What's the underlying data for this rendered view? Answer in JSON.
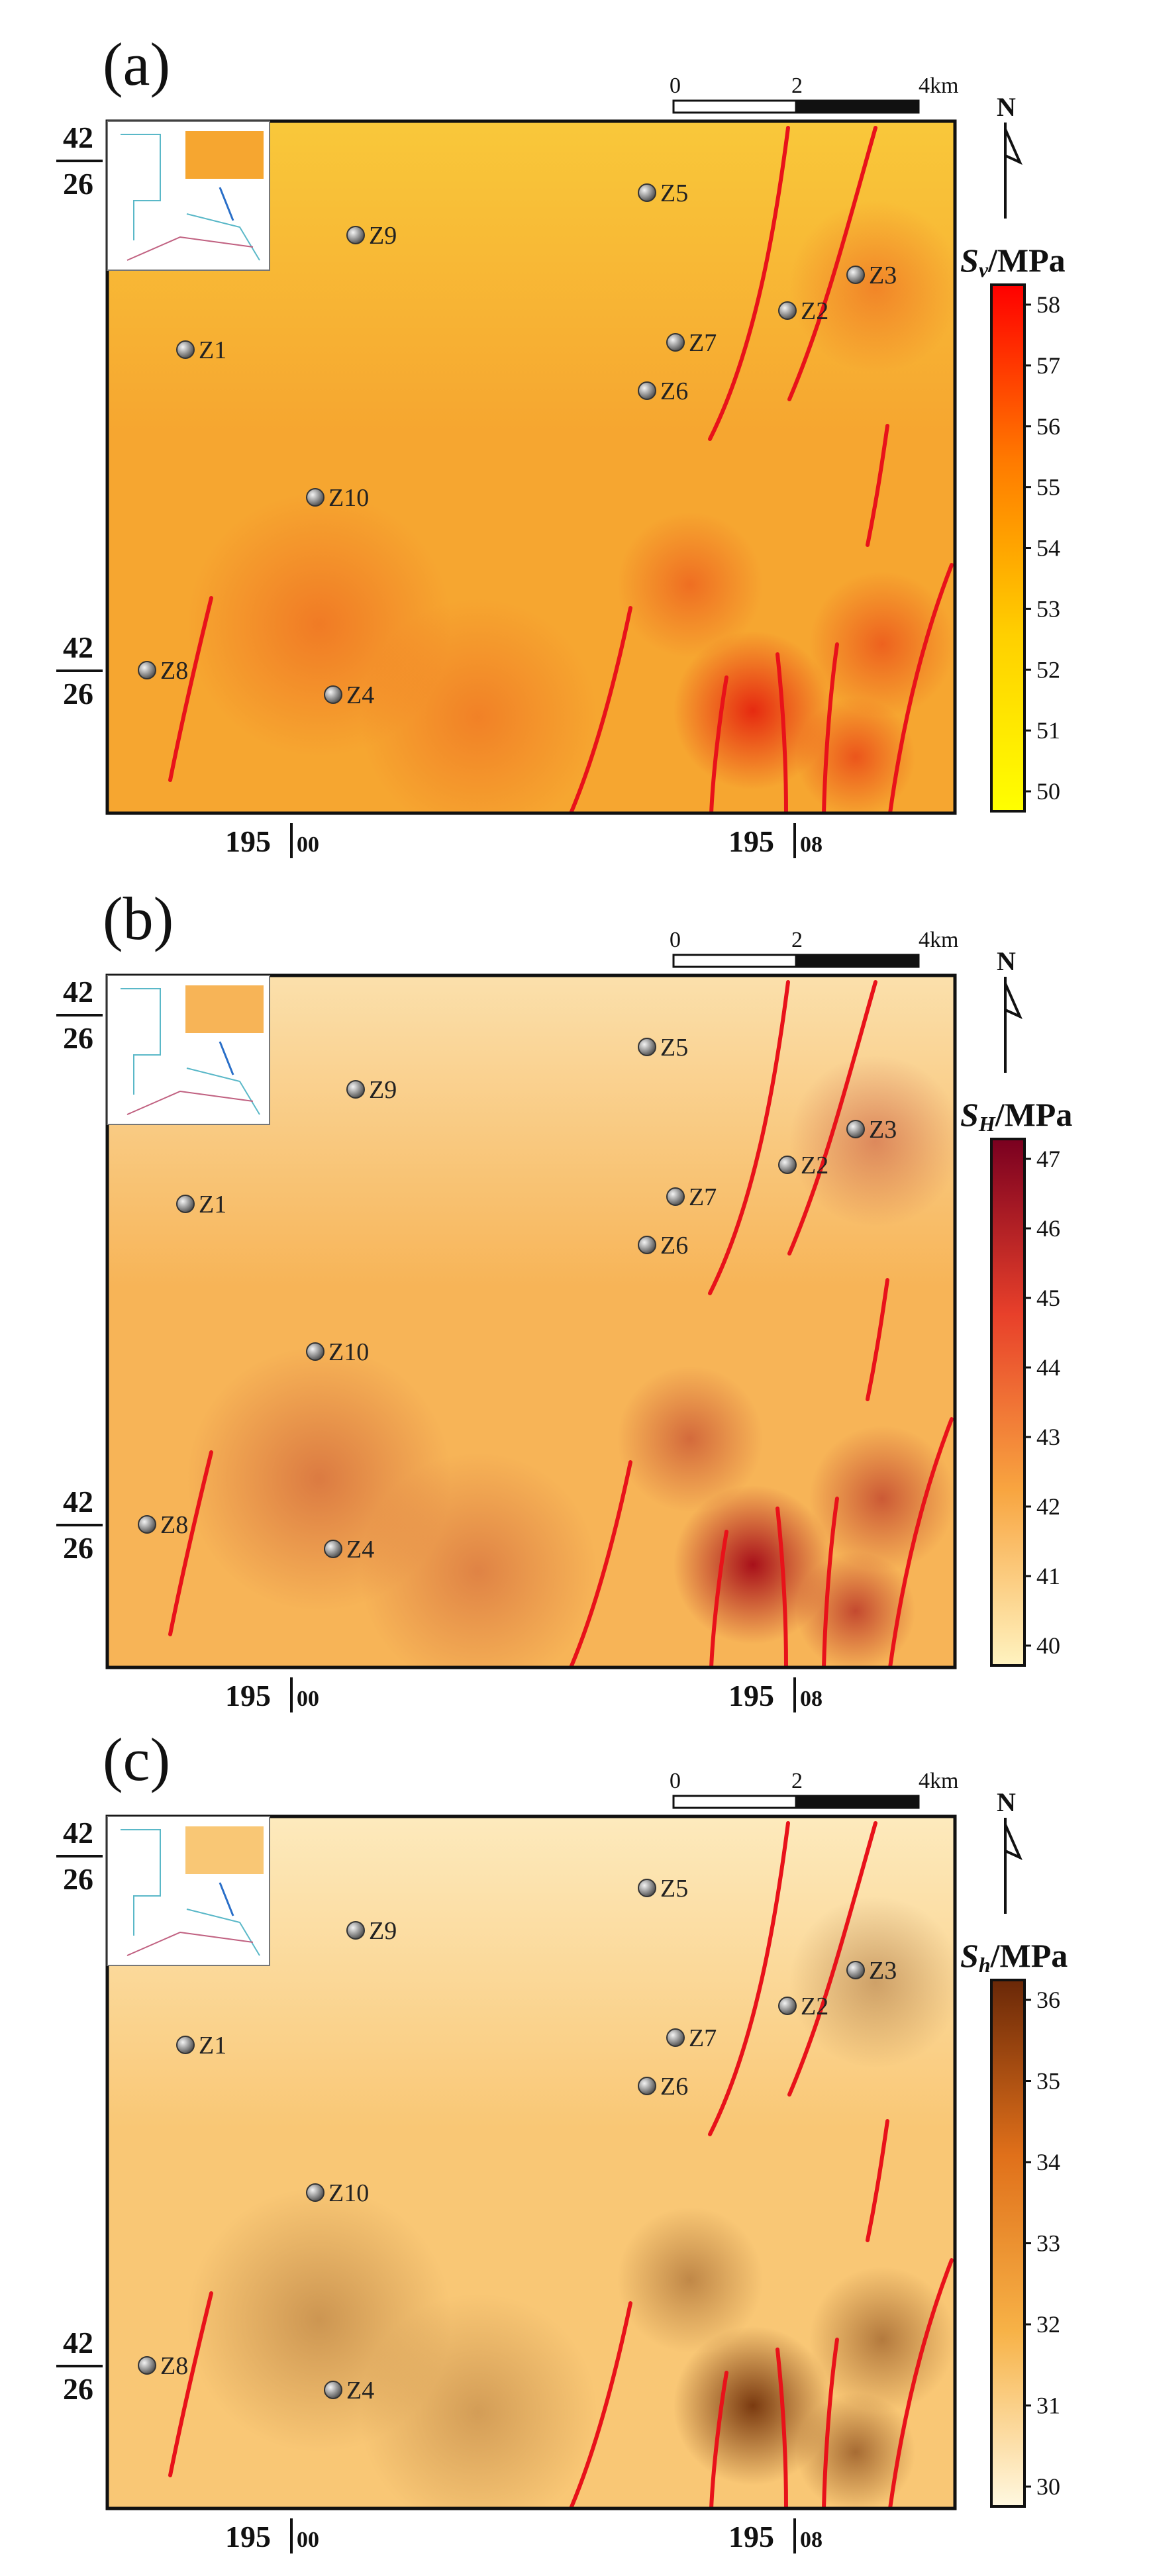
{
  "panels": [
    {
      "label": "(a)",
      "quantity": {
        "symbol": "S",
        "subscript": "v",
        "unit": "/MPa"
      },
      "colorbar": {
        "ticks": [
          "58",
          "57",
          "56",
          "55",
          "54",
          "53",
          "52",
          "51",
          "50"
        ],
        "colors": [
          "#ff0000",
          "#ff7a00",
          "#ffd000",
          "#ffff00"
        ]
      },
      "base_color": "#f6a630",
      "hotspot_color": "#e62a10"
    },
    {
      "label": "(b)",
      "quantity": {
        "symbol": "S",
        "subscript": "H",
        "unit": "/MPa"
      },
      "colorbar": {
        "ticks": [
          "47",
          "46",
          "45",
          "44",
          "43",
          "42",
          "41",
          "40"
        ],
        "colors": [
          "#7a0020",
          "#e8402a",
          "#f8a540",
          "#fff3c0"
        ]
      },
      "base_color": "#f7b457",
      "hotspot_color": "#a8101a"
    },
    {
      "label": "(c)",
      "quantity": {
        "symbol": "S",
        "subscript": "h",
        "unit": "/MPa"
      },
      "colorbar": {
        "ticks": [
          "36",
          "35",
          "34",
          "33",
          "32",
          "31",
          "30"
        ],
        "colors": [
          "#6a2808",
          "#e0701a",
          "#f7b247",
          "#fff8e0"
        ]
      },
      "base_color": "#f9c775",
      "hotspot_color": "#7a3a10"
    }
  ],
  "stations": [
    "Z1",
    "Z2",
    "Z3",
    "Z4",
    "Z5",
    "Z6",
    "Z7",
    "Z8",
    "Z9",
    "Z10"
  ],
  "scale_bar": {
    "labels": [
      "0",
      "2",
      "4km"
    ]
  },
  "north_arrow": {
    "label": "N"
  },
  "lat_ticks": [
    {
      "top": "42",
      "bottom": "26"
    },
    {
      "top": "42",
      "bottom": "26"
    }
  ],
  "lon_ticks": [
    {
      "main": "195",
      "sub": "00"
    },
    {
      "main": "195",
      "sub": "08"
    }
  ]
}
